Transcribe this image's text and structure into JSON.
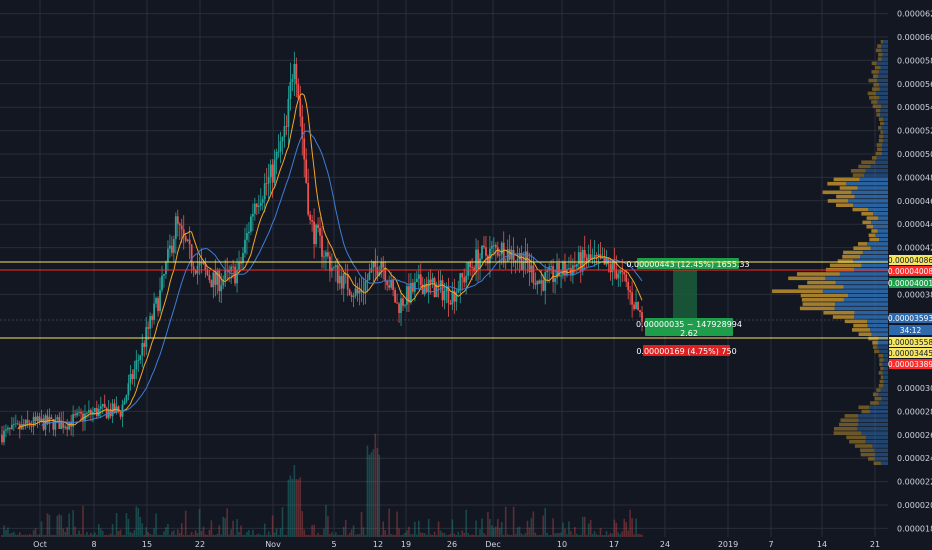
{
  "colors": {
    "background": "#131722",
    "grid": "#2a2e39",
    "up": "#26a69a",
    "down": "#ef5350",
    "ma_fast": "#f5a623",
    "ma_slow": "#3d7dd8",
    "vp_up": "#2d6aad",
    "vp_down": "#b58a2e",
    "yellow_line": "#f5e663",
    "red_line": "#ff2a2a",
    "long_zone": "#1b5e3b",
    "short_zone": "#5b1f25"
  },
  "chart_data": {
    "type": "candlestick",
    "title": "",
    "ylim": [
      1.7e-06,
      6.2e-06
    ],
    "y_ticks": [
      "0.00006200",
      "0.00006000",
      "0.00005800",
      "0.00005600",
      "0.00005400",
      "0.00005200",
      "0.00005000",
      "0.00004800",
      "0.00004600",
      "0.00004400",
      "0.00004200",
      "0.00003800",
      "0.00003000",
      "0.00002800",
      "0.00002600",
      "0.00002400",
      "0.00002200",
      "0.00002000",
      "0.00001800"
    ],
    "x_ticks": [
      "Oct",
      "8",
      "15",
      "22",
      "Nov",
      "5",
      "12",
      "19",
      "26",
      "Dec",
      "10",
      "17",
      "24",
      "2019",
      "7",
      "14",
      "21"
    ],
    "price_path": [
      [
        "Sep 30",
        2.6e-06
      ],
      [
        "Oct 4",
        2.7e-06
      ],
      [
        "Oct 8",
        2.7e-06
      ],
      [
        "Oct 12",
        2.8e-06
      ],
      [
        "Oct 15",
        2.8e-06
      ],
      [
        "Oct 17",
        3.2e-06
      ],
      [
        "Oct 20",
        3.8e-06
      ],
      [
        "Oct 22",
        4.4e-06
      ],
      [
        "Oct 24",
        4.1e-06
      ],
      [
        "Oct 27",
        3.9e-06
      ],
      [
        "Oct 30",
        4e-06
      ],
      [
        "Nov 1",
        4.6e-06
      ],
      [
        "Nov 3",
        4.8e-06
      ],
      [
        "Nov 5",
        5.2e-06
      ],
      [
        "Nov 6",
        5.9e-06
      ],
      [
        "Nov 8",
        4.4e-06
      ],
      [
        "Nov 11",
        4e-06
      ],
      [
        "Nov 14",
        3.8e-06
      ],
      [
        "Nov 17",
        4.1e-06
      ],
      [
        "Nov 19",
        3.7e-06
      ],
      [
        "Nov 22",
        3.9e-06
      ],
      [
        "Nov 26",
        3.8e-06
      ],
      [
        "Nov 29",
        4.1e-06
      ],
      [
        "Dec 2",
        4.2e-06
      ],
      [
        "Dec 5",
        4.1e-06
      ],
      [
        "Dec 7",
        3.9e-06
      ],
      [
        "Dec 10",
        4e-06
      ],
      [
        "Dec 13",
        4.1e-06
      ],
      [
        "Dec 17",
        4e-06
      ],
      [
        "Dec 20",
        3.6e-06
      ]
    ],
    "horizontal_lines": [
      {
        "label": "0.00004086",
        "price": 4.086e-06,
        "color": "#f5e663"
      },
      {
        "label": "0.00004008",
        "price": 4.008e-06,
        "color": "#ff2a2a"
      },
      {
        "label": "0.00003558",
        "price": 3.558e-06,
        "color": "#f5e663"
      }
    ],
    "price_tags": [
      {
        "label": "0.00004086",
        "bg": "#f5e663",
        "fg": "#131722"
      },
      {
        "label": "0.00004008",
        "bg": "#ff2a2a",
        "fg": "#ffffff"
      },
      {
        "label": "0.00004001",
        "bg": "#1e9e4a",
        "fg": "#ffffff"
      },
      {
        "label": "0.00003593",
        "bg": "#2d6aad",
        "fg": "#ffffff"
      },
      {
        "label": "34:12",
        "bg": "#2d6aad",
        "fg": "#ffffff"
      },
      {
        "label": "0.00003558",
        "bg": "#f5e663",
        "fg": "#131722"
      },
      {
        "label": "0.00003445",
        "bg": "#f5e663",
        "fg": "#131722"
      },
      {
        "label": "0.00003389",
        "bg": "#ff2a2a",
        "fg": "#ffffff"
      }
    ],
    "position_tool": {
      "target": "0.00000443 (12.45%) 1655.33",
      "entry_line1": "0.00000035 ~ 147928994",
      "entry_line2": "2.62",
      "stop": "0.00000169 (4.75%) 750"
    }
  }
}
